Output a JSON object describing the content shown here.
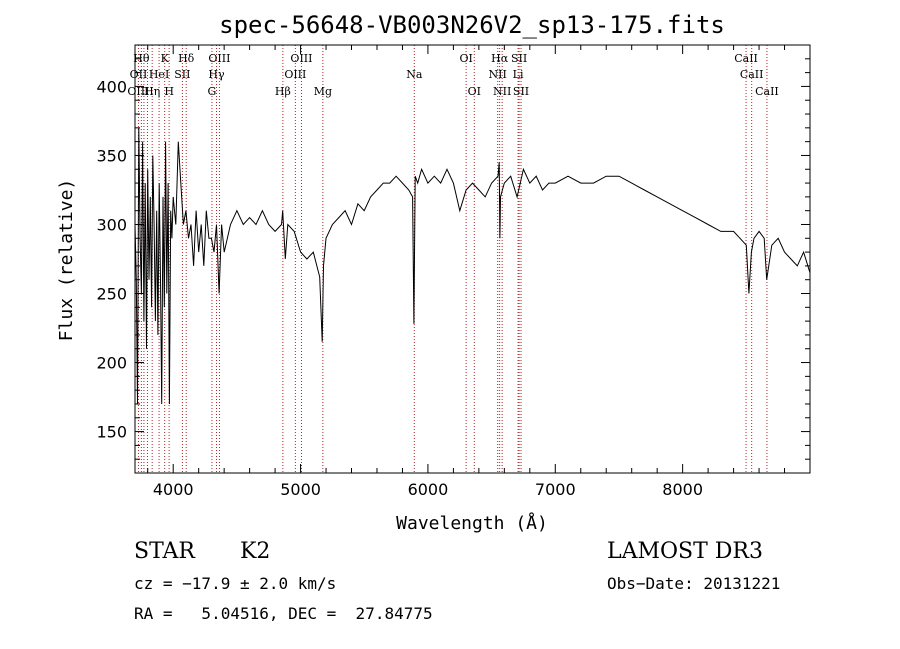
{
  "chart_data": {
    "type": "line",
    "title": "spec-56648-VB003N26V2_sp13-175.fits",
    "xlabel": "Wavelength (Å)",
    "ylabel": "Flux (relative)",
    "xlim": [
      3700,
      9000
    ],
    "ylim": [
      120,
      430
    ],
    "xticks": [
      4000,
      5000,
      6000,
      7000,
      8000
    ],
    "xtick_labels": [
      "4000",
      "5000",
      "6000",
      "7000",
      "8000"
    ],
    "yticks": [
      150,
      200,
      250,
      300,
      350,
      400
    ],
    "ytick_labels": [
      "150",
      "200",
      "250",
      "300",
      "350",
      "400"
    ],
    "series": [
      {
        "name": "flux",
        "x": [
          3700,
          3710,
          3720,
          3730,
          3740,
          3750,
          3760,
          3770,
          3780,
          3790,
          3800,
          3810,
          3820,
          3830,
          3840,
          3850,
          3860,
          3870,
          3880,
          3890,
          3900,
          3910,
          3920,
          3930,
          3940,
          3950,
          3960,
          3970,
          3980,
          3990,
          4000,
          4020,
          4040,
          4060,
          4080,
          4100,
          4120,
          4140,
          4160,
          4180,
          4200,
          4220,
          4240,
          4260,
          4280,
          4300,
          4320,
          4340,
          4360,
          4380,
          4400,
          4450,
          4500,
          4550,
          4600,
          4650,
          4700,
          4750,
          4800,
          4850,
          4860,
          4880,
          4900,
          4950,
          5000,
          5050,
          5100,
          5150,
          5170,
          5180,
          5200,
          5250,
          5300,
          5350,
          5400,
          5450,
          5500,
          5550,
          5600,
          5650,
          5700,
          5750,
          5800,
          5850,
          5880,
          5890,
          5900,
          5920,
          5950,
          6000,
          6050,
          6100,
          6150,
          6200,
          6250,
          6300,
          6350,
          6400,
          6450,
          6500,
          6550,
          6560,
          6565,
          6570,
          6600,
          6650,
          6700,
          6750,
          6800,
          6850,
          6900,
          6950,
          7000,
          7100,
          7200,
          7300,
          7400,
          7500,
          7600,
          7700,
          7800,
          7900,
          8000,
          8100,
          8200,
          8300,
          8400,
          8450,
          8500,
          8520,
          8540,
          8560,
          8600,
          8640,
          8660,
          8700,
          8750,
          8800,
          8850,
          8900,
          8950,
          9000
        ],
        "y": [
          300,
          260,
          170,
          370,
          290,
          250,
          360,
          230,
          330,
          210,
          340,
          260,
          320,
          240,
          350,
          300,
          230,
          310,
          220,
          330,
          260,
          170,
          320,
          240,
          360,
          250,
          330,
          170,
          310,
          290,
          320,
          300,
          360,
          330,
          300,
          310,
          290,
          300,
          270,
          310,
          280,
          300,
          270,
          310,
          290,
          290,
          280,
          300,
          250,
          300,
          280,
          300,
          310,
          300,
          305,
          300,
          310,
          300,
          295,
          300,
          310,
          275,
          300,
          295,
          280,
          275,
          280,
          262,
          215,
          270,
          290,
          300,
          305,
          310,
          300,
          315,
          310,
          320,
          325,
          330,
          330,
          335,
          330,
          325,
          320,
          228,
          335,
          330,
          340,
          330,
          335,
          330,
          340,
          330,
          310,
          325,
          330,
          325,
          320,
          330,
          335,
          345,
          290,
          320,
          330,
          335,
          320,
          340,
          330,
          335,
          325,
          330,
          330,
          335,
          330,
          330,
          335,
          335,
          330,
          325,
          320,
          315,
          310,
          305,
          300,
          295,
          295,
          290,
          285,
          250,
          280,
          290,
          295,
          290,
          260,
          285,
          290,
          280,
          275,
          270,
          280,
          265
        ]
      }
    ],
    "line_labels": [
      {
        "name": "Hθ",
        "row": 1
      },
      {
        "name": "K",
        "row": 1
      },
      {
        "name": "Hδ",
        "row": 1
      },
      {
        "name": "OII",
        "row": 2
      },
      {
        "name": "HeI",
        "row": 2
      },
      {
        "name": "SII",
        "row": 2
      },
      {
        "name": "OIII",
        "row": 3
      },
      {
        "name": "Hη",
        "row": 3
      },
      {
        "name": "H",
        "row": 3
      },
      {
        "name": "OIII",
        "row": 1
      },
      {
        "name": "Hγ",
        "row": 2
      },
      {
        "name": "G",
        "row": 3
      },
      {
        "name": "OIII",
        "row": 1
      },
      {
        "name": "OIII",
        "row": 2
      },
      {
        "name": "Hβ",
        "row": 3
      },
      {
        "name": "Mg",
        "row": 3
      },
      {
        "name": "Na",
        "row": 2
      },
      {
        "name": "OI",
        "row": 1
      },
      {
        "name": "OI",
        "row": 3
      },
      {
        "name": "Hα",
        "row": 1
      },
      {
        "name": "NII",
        "row": 2
      },
      {
        "name": "NII",
        "row": 3
      },
      {
        "name": "SII",
        "row": 1
      },
      {
        "name": "Li",
        "row": 2
      },
      {
        "name": "SII",
        "row": 3
      },
      {
        "name": "CaII",
        "row": 1
      },
      {
        "name": "CaII",
        "row": 2
      },
      {
        "name": "CaII",
        "row": 3
      }
    ],
    "line_x": [
      3750,
      3933,
      4102,
      3727,
      3889,
      4072,
      3727,
      3835,
      3968,
      4363,
      4340,
      4304,
      5007,
      4959,
      4861,
      5175,
      5893,
      6300,
      6364,
      6563,
      6548,
      6583,
      6716,
      6708,
      6731,
      8498,
      8542,
      8662
    ],
    "vlines_x": [
      3727,
      3750,
      3770,
      3798,
      3835,
      3889,
      3933,
      3968,
      4072,
      4102,
      4304,
      4340,
      4363,
      4861,
      4959,
      5007,
      5175,
      5893,
      6300,
      6364,
      6548,
      6563,
      6583,
      6708,
      6716,
      6731,
      8498,
      8542,
      8662
    ]
  },
  "info": {
    "object_class": "STAR",
    "subclass": "K2",
    "survey": "LAMOST DR3",
    "cz": "cz = −17.9 ± 2.0 km/s",
    "obs_date": "Obs−Date: 20131221",
    "ra_dec": "RA =   5.04516, DEC =  27.84775"
  },
  "colors": {
    "line_marker": "#b22222",
    "spectrum": "#000000"
  }
}
